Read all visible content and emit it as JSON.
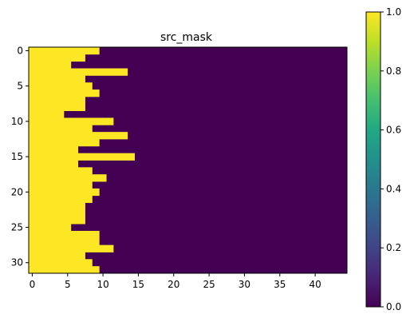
{
  "chart_data": {
    "type": "heatmap",
    "title": "src_mask",
    "xlabel": "",
    "ylabel": "",
    "rows": 32,
    "cols": 45,
    "xlim": [
      -0.5,
      44.5
    ],
    "ylim": [
      31.5,
      -0.5
    ],
    "x_ticks": [
      0,
      5,
      10,
      15,
      20,
      25,
      30,
      35,
      40
    ],
    "y_ticks": [
      0,
      5,
      10,
      15,
      20,
      25,
      30
    ],
    "value_low": 0,
    "value_high": 1,
    "colormap": "viridis",
    "colors": {
      "low": "#440154",
      "high": "#fde725"
    },
    "row_ones_count": [
      10,
      8,
      6,
      14,
      8,
      9,
      10,
      8,
      8,
      5,
      12,
      9,
      14,
      10,
      7,
      15,
      7,
      9,
      11,
      9,
      10,
      9,
      8,
      8,
      8,
      6,
      10,
      10,
      12,
      8,
      9,
      10
    ],
    "colorbar": {
      "range": [
        0.0,
        1.0
      ],
      "ticks": [
        "0.0",
        "0.2",
        "0.4",
        "0.6",
        "0.8",
        "1.0"
      ]
    }
  }
}
